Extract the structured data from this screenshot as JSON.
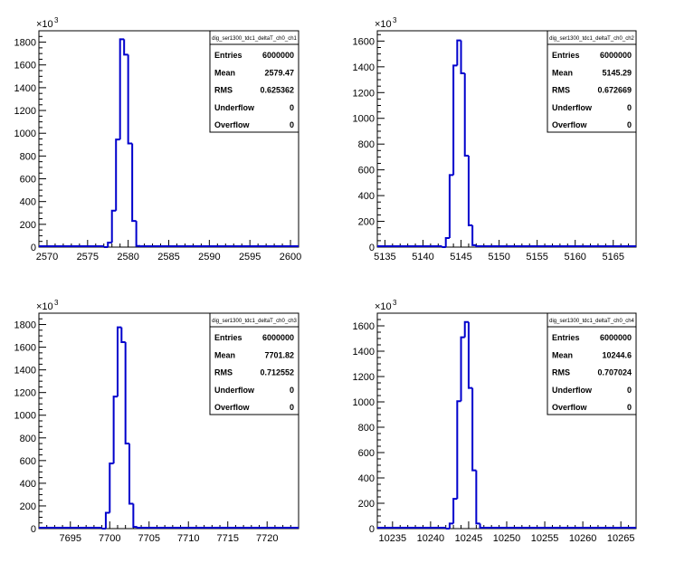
{
  "chart_data": [
    {
      "type": "bar",
      "histogram_name": "dig_ser1300_tdc1_deltaT_ch0_ch1",
      "title": "",
      "xlabel": "",
      "ylabel": "",
      "y_multiplier_label": "×10",
      "y_multiplier_exp": "3",
      "xlim": [
        2569,
        2601
      ],
      "ylim": [
        0,
        1900
      ],
      "x_ticks": [
        2570,
        2575,
        2580,
        2585,
        2590,
        2595,
        2600
      ],
      "y_ticks": [
        0,
        200,
        400,
        600,
        800,
        1000,
        1200,
        1400,
        1600,
        1800
      ],
      "bin_edges": [
        2577.0,
        2577.5,
        2578.0,
        2578.5,
        2579.0,
        2579.5,
        2580.0,
        2580.5,
        2581.0,
        2581.5
      ],
      "values": [
        0,
        40,
        320,
        945,
        1825,
        1690,
        910,
        230,
        10
      ],
      "stats": [
        {
          "label": "Entries",
          "value": "6000000"
        },
        {
          "label": "Mean",
          "value": "2579.47"
        },
        {
          "label": "RMS",
          "value": "0.625362"
        },
        {
          "label": "Underflow",
          "value": "0"
        },
        {
          "label": "Overflow",
          "value": "0"
        }
      ]
    },
    {
      "type": "bar",
      "histogram_name": "dig_ser1300_tdc1_deltaT_ch0_ch2",
      "title": "",
      "xlabel": "",
      "ylabel": "",
      "y_multiplier_label": "×10",
      "y_multiplier_exp": "3",
      "xlim": [
        5134,
        5168
      ],
      "ylim": [
        0,
        1680
      ],
      "x_ticks": [
        5135,
        5140,
        5145,
        5150,
        5155,
        5160,
        5165
      ],
      "y_ticks": [
        0,
        200,
        400,
        600,
        800,
        1000,
        1200,
        1400,
        1600
      ],
      "bin_edges": [
        5142.5,
        5143.0,
        5143.5,
        5144.0,
        5144.5,
        5145.0,
        5145.5,
        5146.0,
        5146.5,
        5147.0
      ],
      "values": [
        0,
        70,
        560,
        1410,
        1605,
        1350,
        710,
        170,
        15
      ],
      "stats": [
        {
          "label": "Entries",
          "value": "6000000"
        },
        {
          "label": "Mean",
          "value": "5145.29"
        },
        {
          "label": "RMS",
          "value": "0.672669"
        },
        {
          "label": "Underflow",
          "value": "0"
        },
        {
          "label": "Overflow",
          "value": "0"
        }
      ]
    },
    {
      "type": "bar",
      "histogram_name": "dig_ser1300_tdc1_deltaT_ch0_ch3",
      "title": "",
      "xlabel": "",
      "ylabel": "",
      "y_multiplier_label": "×10",
      "y_multiplier_exp": "3",
      "xlim": [
        7691,
        7724
      ],
      "ylim": [
        0,
        1900
      ],
      "x_ticks": [
        7695,
        7700,
        7705,
        7710,
        7715,
        7720
      ],
      "y_ticks": [
        0,
        200,
        400,
        600,
        800,
        1000,
        1200,
        1400,
        1600,
        1800
      ],
      "bin_edges": [
        7699.0,
        7699.5,
        7700.0,
        7700.5,
        7701.0,
        7701.5,
        7702.0,
        7702.5,
        7703.0,
        7703.5
      ],
      "values": [
        0,
        140,
        575,
        1165,
        1775,
        1645,
        750,
        220,
        15
      ],
      "stats": [
        {
          "label": "Entries",
          "value": "6000000"
        },
        {
          "label": "Mean",
          "value": "7701.82"
        },
        {
          "label": "RMS",
          "value": "0.712552"
        },
        {
          "label": "Underflow",
          "value": "0"
        },
        {
          "label": "Overflow",
          "value": "0"
        }
      ]
    },
    {
      "type": "bar",
      "histogram_name": "dig_ser1300_tdc1_deltaT_ch0_ch4",
      "title": "",
      "xlabel": "",
      "ylabel": "",
      "y_multiplier_label": "×10",
      "y_multiplier_exp": "3",
      "xlim": [
        10233,
        10267
      ],
      "ylim": [
        0,
        1700
      ],
      "x_ticks": [
        10235,
        10240,
        10245,
        10250,
        10255,
        10260,
        10265
      ],
      "y_ticks": [
        0,
        200,
        400,
        600,
        800,
        1000,
        1200,
        1400,
        1600
      ],
      "bin_edges": [
        10242.0,
        10242.5,
        10243.0,
        10243.5,
        10244.0,
        10244.5,
        10245.0,
        10245.5,
        10246.0,
        10246.5
      ],
      "values": [
        0,
        40,
        235,
        1005,
        1510,
        1630,
        1110,
        460,
        40
      ],
      "stats": [
        {
          "label": "Entries",
          "value": "6000000"
        },
        {
          "label": "Mean",
          "value": "10244.6"
        },
        {
          "label": "RMS",
          "value": "0.707024"
        },
        {
          "label": "Underflow",
          "value": "0"
        },
        {
          "label": "Overflow",
          "value": "0"
        }
      ]
    }
  ]
}
